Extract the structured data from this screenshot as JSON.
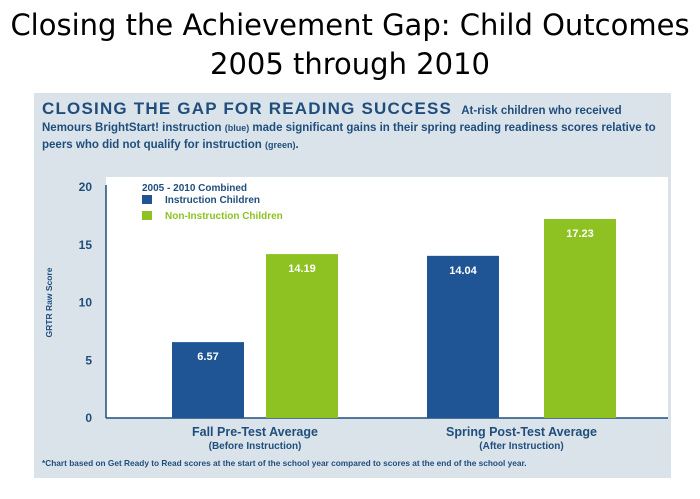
{
  "slide_title_line1": "Closing the Achievement Gap: Child Outcomes",
  "slide_title_line2": "2005 through 2010",
  "headline": {
    "lead": "CLOSING THE GAP FOR READING SUCCESS",
    "part1": "At-risk children who received Nemours BrightStart! instruction ",
    "part1_note": "(blue)",
    "part2": " made significant gains in their spring reading readiness scores relative to peers who did not qualify for instruction ",
    "part2_note": "(green)",
    "part3": "."
  },
  "footnote": "*Chart based on Get Ready to Read scores at the start of the school year compared to scores at the end of the school year.",
  "colors": {
    "blue": "#1f5594",
    "green": "#8dc222",
    "text": "#1f4e7d"
  },
  "chart_data": {
    "type": "bar",
    "ylabel": "GRTR Raw Score",
    "ylim": [
      0,
      20
    ],
    "yticks": [
      0,
      5,
      10,
      15,
      20
    ],
    "categories": [
      "Fall Pre-Test Average",
      "Spring Post-Test Average"
    ],
    "category_subtitles": [
      "(Before Instruction)",
      "(After Instruction)"
    ],
    "legend_title": "2005 - 2010 Combined",
    "legend_position": "top-left",
    "series": [
      {
        "name": "Instruction Children",
        "color": "#1f5594",
        "values": [
          6.57,
          14.04
        ],
        "labels": [
          "6.57",
          "14.04"
        ]
      },
      {
        "name": "Non-Instruction Children",
        "color": "#8dc222",
        "values": [
          14.19,
          17.23
        ],
        "labels": [
          "14.19",
          "17.23"
        ]
      }
    ]
  }
}
